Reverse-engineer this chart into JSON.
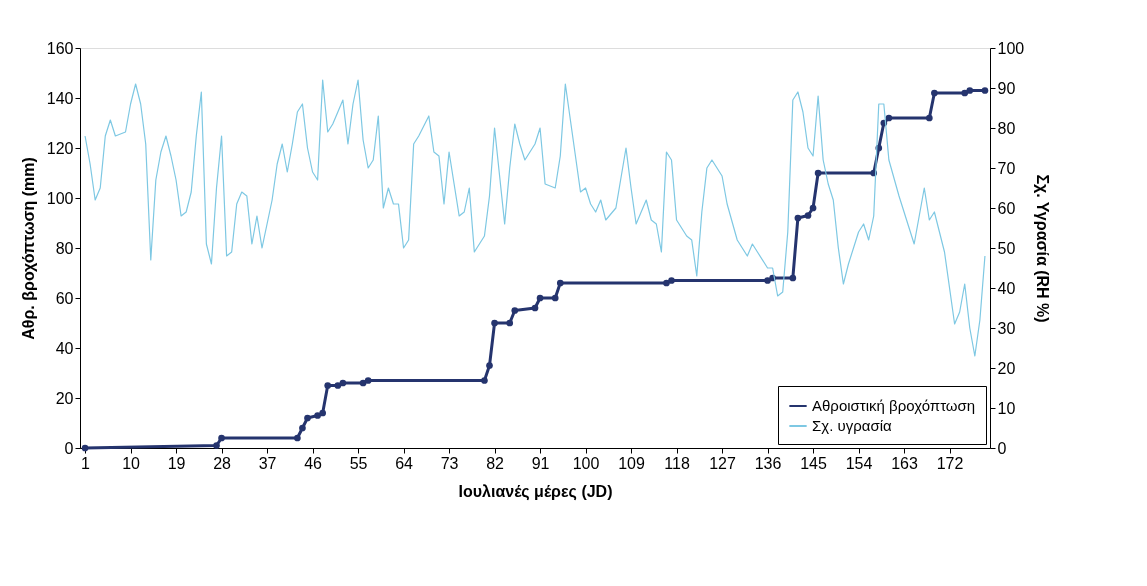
{
  "chart_data": {
    "type": "line",
    "xlabel": "Ιουλιανές μέρες (JD)",
    "ylabel": "Αθρ. βροχόπτωση (mm)",
    "y2label": "Σχ. Υγρασία (RH %)",
    "xlim": [
      0,
      180
    ],
    "xticks": [
      1,
      10,
      19,
      28,
      37,
      46,
      55,
      64,
      73,
      82,
      91,
      100,
      109,
      118,
      127,
      136,
      145,
      154,
      163,
      172
    ],
    "ylim": [
      0,
      160
    ],
    "yticks": [
      0,
      20,
      40,
      60,
      80,
      100,
      120,
      140,
      160
    ],
    "y2lim": [
      0,
      100
    ],
    "y2ticks": [
      0,
      10,
      20,
      30,
      40,
      50,
      60,
      70,
      80,
      90,
      100
    ],
    "grid": false,
    "legend": "bottom right",
    "series": [
      {
        "name": "Αθροιστική βροχόπτωση",
        "color": "#25346e",
        "marker": "circle",
        "axis": "y",
        "x": [
          1,
          27,
          28,
          43,
          44,
          45,
          47,
          48,
          49,
          51,
          52,
          56,
          57,
          80,
          81,
          82,
          85,
          86,
          90,
          91,
          94,
          95,
          116,
          117,
          136,
          137,
          141,
          142,
          144,
          145,
          146,
          157,
          158,
          159,
          160,
          168,
          169,
          175,
          176,
          179
        ],
        "values": [
          0,
          1,
          4,
          4,
          8,
          12,
          13,
          14,
          25,
          25,
          26,
          26,
          27,
          27,
          33,
          50,
          50,
          55,
          56,
          60,
          60,
          66,
          66,
          67,
          67,
          68,
          68,
          92,
          93,
          96,
          110,
          110,
          120,
          130,
          132,
          132,
          142,
          142,
          143,
          143
        ]
      },
      {
        "name": "Σχ. υγρασία",
        "color": "#7ec8e3",
        "marker": "none",
        "axis": "y2",
        "x": [
          1,
          2,
          3,
          4,
          5,
          6,
          7,
          9,
          10,
          11,
          12,
          13,
          14,
          15,
          16,
          17,
          18,
          19,
          20,
          21,
          22,
          23,
          24,
          25,
          26,
          27,
          28,
          29,
          30,
          31,
          32,
          33,
          34,
          35,
          36,
          38,
          39,
          40,
          41,
          42,
          43,
          44,
          45,
          46,
          47,
          48,
          49,
          50,
          52,
          53,
          54,
          55,
          56,
          57,
          58,
          59,
          60,
          61,
          62,
          63,
          64,
          65,
          66,
          67,
          69,
          70,
          71,
          72,
          73,
          74,
          75,
          76,
          77,
          78,
          80,
          81,
          82,
          83,
          84,
          85,
          86,
          87,
          88,
          90,
          91,
          92,
          94,
          95,
          96,
          97,
          98,
          99,
          100,
          101,
          102,
          103,
          104,
          106,
          108,
          109,
          110,
          111,
          112,
          113,
          114,
          115,
          116,
          117,
          118,
          120,
          121,
          122,
          123,
          124,
          125,
          127,
          128,
          130,
          131,
          132,
          133,
          134,
          136,
          137,
          138,
          139,
          140,
          141,
          142,
          143,
          144,
          145,
          146,
          147,
          148,
          149,
          150,
          151,
          152,
          154,
          155,
          156,
          157,
          158,
          159,
          160,
          162,
          165,
          167,
          168,
          169,
          170,
          171,
          173,
          174,
          175,
          176,
          177,
          178,
          179
        ],
        "values": [
          78,
          71,
          62,
          65,
          78,
          82,
          78,
          79,
          86,
          91,
          86,
          76,
          47,
          67,
          74,
          78,
          73,
          67,
          58,
          59,
          64,
          78,
          89,
          51,
          46,
          65,
          78,
          48,
          49,
          61,
          64,
          63,
          51,
          58,
          50,
          62,
          71,
          76,
          69,
          76,
          84,
          86,
          75,
          69,
          67,
          92,
          79,
          81,
          87,
          76,
          86,
          92,
          77,
          70,
          72,
          83,
          60,
          65,
          61,
          61,
          50,
          52,
          76,
          78,
          83,
          74,
          73,
          61,
          74,
          66,
          58,
          59,
          65,
          49,
          53,
          63,
          80,
          68,
          56,
          70,
          81,
          76,
          72,
          76,
          80,
          66,
          65,
          73,
          91,
          82,
          73,
          64,
          65,
          61,
          59,
          62,
          57,
          60,
          75,
          65,
          56,
          59,
          62,
          57,
          56,
          49,
          74,
          72,
          57,
          53,
          52,
          43,
          59,
          70,
          72,
          68,
          61,
          52,
          50,
          48,
          51,
          49,
          45,
          45,
          38,
          39,
          54,
          87,
          89,
          84,
          75,
          73,
          88,
          72,
          66,
          62,
          50,
          41,
          46,
          54,
          56,
          52,
          58,
          86,
          86,
          72,
          63,
          51,
          65,
          57,
          59,
          54,
          49,
          31,
          34,
          41,
          30,
          23,
          32,
          48
        ]
      }
    ]
  }
}
